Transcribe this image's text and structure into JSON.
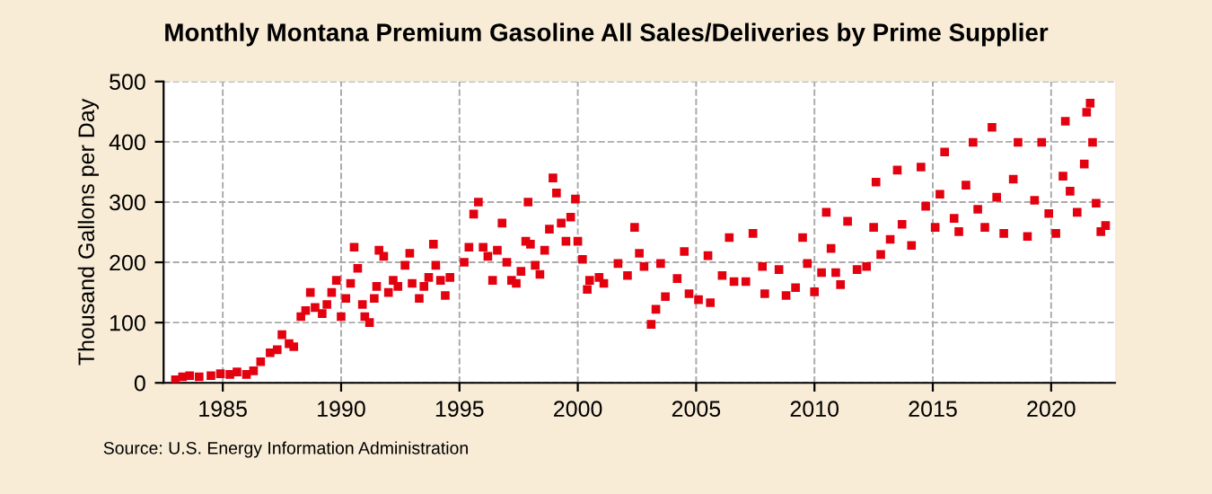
{
  "chart_data": {
    "type": "scatter",
    "title": "Monthly Montana Premium Gasoline All Sales/Deliveries by Prime Supplier",
    "ylabel": "Thousand Gallons per Day",
    "annotations": [
      "Source: U.S. Energy Information Administration"
    ],
    "x": [
      1983.0,
      1983.3,
      1983.6,
      1984.0,
      1984.5,
      1984.9,
      1985.3,
      1985.6,
      1986.0,
      1986.3,
      1986.6,
      1987.0,
      1987.3,
      1987.5,
      1987.8,
      1988.0,
      1988.3,
      1988.5,
      1988.7,
      1988.9,
      1989.2,
      1989.4,
      1989.6,
      1989.8,
      1990.0,
      1990.2,
      1990.4,
      1990.55,
      1990.7,
      1990.9,
      1991.0,
      1991.2,
      1991.4,
      1991.5,
      1991.6,
      1991.8,
      1992.0,
      1992.2,
      1992.4,
      1992.7,
      1992.9,
      1993.0,
      1993.3,
      1993.5,
      1993.7,
      1993.9,
      1994.0,
      1994.2,
      1994.4,
      1994.6,
      1995.2,
      1995.4,
      1995.6,
      1995.8,
      1996.0,
      1996.2,
      1996.4,
      1996.6,
      1996.8,
      1997.0,
      1997.2,
      1997.4,
      1997.6,
      1997.8,
      1997.9,
      1998.0,
      1998.2,
      1998.4,
      1998.6,
      1998.8,
      1998.95,
      1999.1,
      1999.3,
      1999.5,
      1999.7,
      1999.9,
      2000.0,
      2000.2,
      2000.4,
      2000.5,
      2000.9,
      2001.1,
      2001.7,
      2002.1,
      2002.4,
      2002.6,
      2002.8,
      2003.1,
      2003.3,
      2003.5,
      2003.7,
      2004.2,
      2004.5,
      2004.7,
      2005.1,
      2005.5,
      2005.6,
      2006.1,
      2006.4,
      2006.6,
      2007.1,
      2007.4,
      2007.8,
      2007.9,
      2008.5,
      2008.8,
      2009.2,
      2009.5,
      2009.7,
      2010.0,
      2010.3,
      2010.5,
      2010.7,
      2010.9,
      2011.1,
      2011.4,
      2011.8,
      2012.2,
      2012.5,
      2012.6,
      2012.8,
      2013.2,
      2013.5,
      2013.7,
      2014.1,
      2014.5,
      2014.7,
      2015.1,
      2015.3,
      2015.5,
      2015.9,
      2016.1,
      2016.4,
      2016.7,
      2016.9,
      2017.2,
      2017.5,
      2017.7,
      2018.0,
      2018.4,
      2018.6,
      2019.0,
      2019.3,
      2019.6,
      2019.9,
      2020.2,
      2020.5,
      2020.6,
      2020.8,
      2021.1,
      2021.4,
      2021.5,
      2021.65,
      2021.75,
      2021.9,
      2022.1,
      2022.3
    ],
    "series": [
      {
        "color": "#e3000f",
        "values": [
          5,
          10,
          12,
          10,
          12,
          15,
          14,
          18,
          14,
          20,
          35,
          50,
          55,
          80,
          65,
          60,
          110,
          120,
          150,
          125,
          115,
          130,
          150,
          170,
          110,
          140,
          165,
          225,
          190,
          130,
          110,
          100,
          140,
          160,
          220,
          210,
          150,
          170,
          160,
          195,
          215,
          165,
          140,
          160,
          175,
          230,
          195,
          170,
          145,
          175,
          200,
          225,
          280,
          300,
          225,
          210,
          170,
          220,
          265,
          200,
          170,
          165,
          185,
          235,
          300,
          230,
          195,
          180,
          220,
          255,
          340,
          315,
          265,
          235,
          275,
          305,
          235,
          205,
          155,
          170,
          175,
          165,
          198,
          178,
          258,
          215,
          193,
          97,
          122,
          198,
          143,
          173,
          218,
          148,
          138,
          211,
          133,
          178,
          241,
          168,
          168,
          248,
          193,
          148,
          188,
          145,
          158,
          241,
          198,
          151,
          183,
          283,
          223,
          183,
          163,
          268,
          188,
          193,
          258,
          333,
          213,
          238,
          353,
          263,
          228,
          358,
          293,
          258,
          313,
          383,
          273,
          251,
          328,
          399,
          288,
          258,
          424,
          308,
          248,
          338,
          399,
          243,
          303,
          399,
          281,
          248,
          343,
          434,
          318,
          283,
          363,
          449,
          464,
          399,
          298,
          251,
          261
        ]
      }
    ],
    "xlim": [
      1982.5,
      2022.7
    ],
    "xticks": [
      1985,
      1990,
      1995,
      2000,
      2005,
      2010,
      2015,
      2020
    ],
    "ylim": [
      0,
      500
    ],
    "yticks": [
      0,
      100,
      200,
      300,
      400,
      500
    ],
    "grid": true,
    "marker": "square",
    "legend": false
  }
}
